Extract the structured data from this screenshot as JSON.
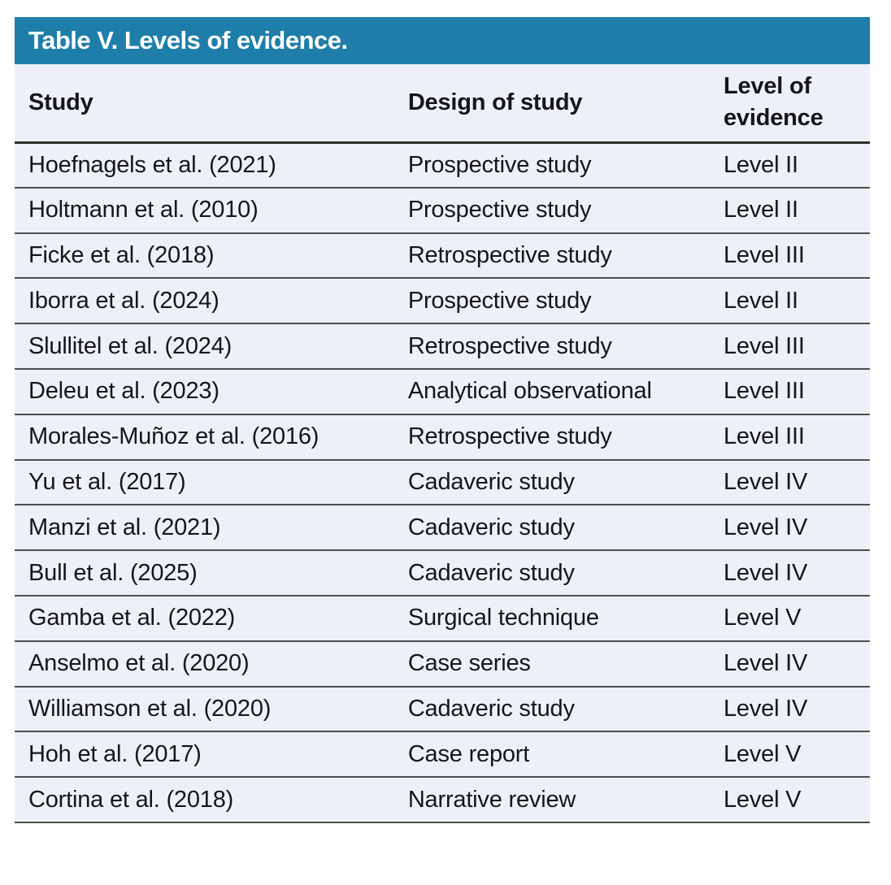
{
  "table": {
    "title": "Table V. Levels of evidence.",
    "columns": [
      "Study",
      "Design of study",
      "Level of evidence"
    ],
    "rows": [
      {
        "study": "Hoefnagels et al. (2021)",
        "design": "Prospective study",
        "level": "Level II"
      },
      {
        "study": "Holtmann et al. (2010)",
        "design": "Prospective study",
        "level": "Level II"
      },
      {
        "study": "Ficke et al. (2018)",
        "design": "Retrospective study",
        "level": "Level III"
      },
      {
        "study": "Iborra et al. (2024)",
        "design": "Prospective study",
        "level": "Level II"
      },
      {
        "study": "Slullitel et al. (2024)",
        "design": "Retrospective study",
        "level": "Level III"
      },
      {
        "study": "Deleu et al. (2023)",
        "design": "Analytical observational",
        "level": "Level III"
      },
      {
        "study": "Morales-Muñoz et al. (2016)",
        "design": "Retrospective study",
        "level": "Level III"
      },
      {
        "study": "Yu et al. (2017)",
        "design": "Cadaveric study",
        "level": "Level IV"
      },
      {
        "study": "Manzi et al. (2021)",
        "design": "Cadaveric study",
        "level": "Level IV"
      },
      {
        "study": "Bull et al. (2025)",
        "design": "Cadaveric study",
        "level": "Level IV"
      },
      {
        "study": "Gamba et al. (2022)",
        "design": "Surgical technique",
        "level": "Level V"
      },
      {
        "study": "Anselmo et al. (2020)",
        "design": "Case series",
        "level": "Level IV"
      },
      {
        "study": "Williamson et al. (2020)",
        "design": "Cadaveric study",
        "level": "Level IV"
      },
      {
        "study": "Hoh et al. (2017)",
        "design": "Case report",
        "level": "Level V"
      },
      {
        "study": "Cortina et al. (2018)",
        "design": "Narrative review",
        "level": "Level V"
      }
    ]
  },
  "colors": {
    "title_bar_bg": "#1e7ea9",
    "table_bg": "#edf1f7",
    "row_border": "#4d4d4d",
    "header_border": "#2f2f2f",
    "title_text": "#ffffff",
    "body_text": "#161616"
  }
}
